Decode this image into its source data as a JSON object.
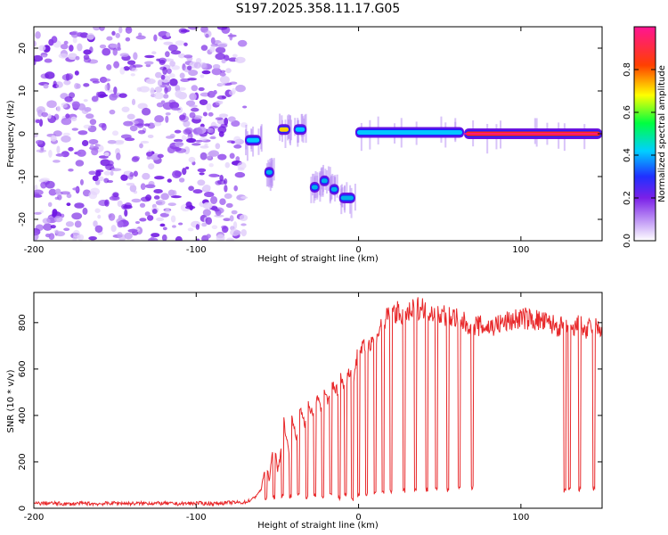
{
  "chart_data": [
    {
      "type": "heatmap",
      "title": "S197.2025.358.11.17.G05",
      "xlabel": "Height of straight line (km)",
      "ylabel": "Frequency (Hz)",
      "xlim": [
        -200,
        150
      ],
      "ylim": [
        -25,
        25
      ],
      "xticks": [
        -200,
        -100,
        0,
        100
      ],
      "yticks": [
        -20,
        -10,
        0,
        10,
        20
      ],
      "colorbar": {
        "label": "Normalized spectral amplitude",
        "range": [
          0.0,
          1.0
        ],
        "ticks": [
          0.0,
          0.2,
          0.4,
          0.6,
          0.8
        ],
        "tick_labels": [
          "0.0",
          "0.2",
          "0.4",
          "0.6",
          "0.8"
        ],
        "colors": [
          "#ffffff",
          "#9b30ff",
          "#4020ff",
          "#00c8ff",
          "#00ff40",
          "#ffff00",
          "#ff4000",
          "#ff1493"
        ]
      },
      "noise_region": {
        "x_range": [
          -200,
          -70
        ],
        "freq_range": [
          -25,
          25
        ],
        "amplitude": 0.15
      },
      "ridge": [
        {
          "x_start": -70,
          "x_end": -60,
          "freq": -1.5,
          "amplitude": 0.45
        },
        {
          "x_start": -58,
          "x_end": -52,
          "freq": -9,
          "amplitude": 0.35
        },
        {
          "x_start": -50,
          "x_end": -42,
          "freq": 1,
          "amplitude": 0.8
        },
        {
          "x_start": -40,
          "x_end": -32,
          "freq": 1,
          "amplitude": 0.45
        },
        {
          "x_start": -30,
          "x_end": -24,
          "freq": -12.5,
          "amplitude": 0.4
        },
        {
          "x_start": -24,
          "x_end": -18,
          "freq": -11,
          "amplitude": 0.4
        },
        {
          "x_start": -18,
          "x_end": -12,
          "freq": -13,
          "amplitude": 0.4
        },
        {
          "x_start": -12,
          "x_end": -2,
          "freq": -15,
          "amplitude": 0.4
        },
        {
          "x_start": -2,
          "x_end": 65,
          "freq": 0.3,
          "amplitude": 0.55
        },
        {
          "x_start": 65,
          "x_end": 150,
          "freq": 0,
          "amplitude": 0.95
        }
      ]
    },
    {
      "type": "line",
      "title": "",
      "xlabel": "Height of straight line (km)",
      "ylabel": "SNR (10 * v/v)",
      "xlim": [
        -200,
        150
      ],
      "ylim": [
        0,
        930
      ],
      "xticks": [
        -200,
        -100,
        0,
        100
      ],
      "yticks": [
        0,
        200,
        400,
        600,
        800
      ],
      "color": "#e8282a",
      "series": [
        {
          "name": "SNR",
          "x": [
            -200,
            -190,
            -180,
            -170,
            -160,
            -150,
            -140,
            -130,
            -120,
            -110,
            -100,
            -90,
            -80,
            -70,
            -65,
            -60,
            -57,
            -55,
            -52,
            -50,
            -48,
            -46,
            -43,
            -41,
            -38,
            -36,
            -33,
            -31,
            -28,
            -26,
            -23,
            -21,
            -18,
            -16,
            -13,
            -11,
            -8,
            -6,
            -3,
            -1,
            2,
            4,
            7,
            9,
            12,
            15,
            18,
            21,
            25,
            30,
            35,
            40,
            45,
            50,
            55,
            60,
            65,
            70,
            80,
            90,
            100,
            110,
            120,
            125,
            128,
            130,
            132,
            135,
            138,
            140,
            145,
            147,
            150
          ],
          "values": [
            20,
            22,
            18,
            21,
            19,
            23,
            20,
            22,
            21,
            19,
            22,
            20,
            24,
            25,
            40,
            80,
            200,
            120,
            300,
            160,
            230,
            380,
            240,
            390,
            300,
            440,
            360,
            460,
            390,
            480,
            420,
            500,
            460,
            540,
            500,
            560,
            520,
            600,
            560,
            650,
            700,
            680,
            720,
            740,
            760,
            800,
            820,
            850,
            840,
            830,
            860,
            870,
            850,
            840,
            830,
            820,
            800,
            790,
            780,
            800,
            820,
            810,
            790,
            780,
            770,
            780,
            760,
            790,
            780,
            760,
            790,
            770,
            780
          ]
        }
      ],
      "dropouts": [
        {
          "x": -57,
          "floor": 40
        },
        {
          "x": -52,
          "floor": 50
        },
        {
          "x": -47,
          "floor": 55
        },
        {
          "x": -42,
          "floor": 50
        },
        {
          "x": -37,
          "floor": 60
        },
        {
          "x": -32,
          "floor": 45
        },
        {
          "x": -27,
          "floor": 60
        },
        {
          "x": -22,
          "floor": 50
        },
        {
          "x": -17,
          "floor": 60
        },
        {
          "x": -12,
          "floor": 45
        },
        {
          "x": -8,
          "floor": 60
        },
        {
          "x": -4,
          "floor": 40
        },
        {
          "x": 0,
          "floor": 55
        },
        {
          "x": 5,
          "floor": 60
        },
        {
          "x": 10,
          "floor": 65
        },
        {
          "x": 15,
          "floor": 70
        },
        {
          "x": 20,
          "floor": 75
        },
        {
          "x": 28,
          "floor": 75
        },
        {
          "x": 35,
          "floor": 80
        },
        {
          "x": 42,
          "floor": 80
        },
        {
          "x": 48,
          "floor": 80
        },
        {
          "x": 55,
          "floor": 80
        },
        {
          "x": 62,
          "floor": 85
        },
        {
          "x": 70,
          "floor": 90
        },
        {
          "x": 127,
          "floor": 75
        },
        {
          "x": 130,
          "floor": 80
        },
        {
          "x": 136,
          "floor": 80
        },
        {
          "x": 145,
          "floor": 85
        }
      ]
    }
  ]
}
